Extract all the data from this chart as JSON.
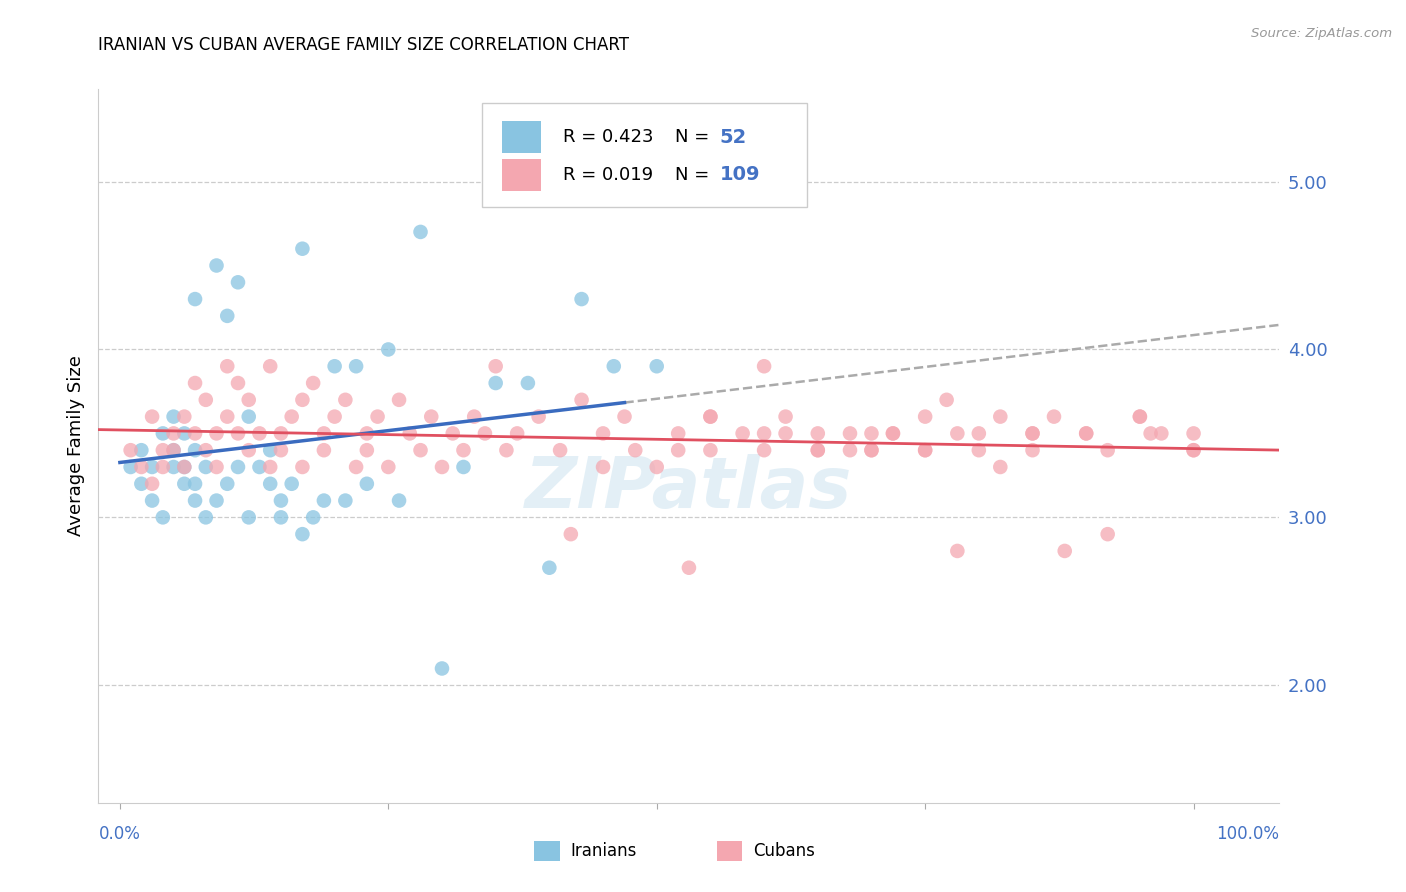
{
  "title": "IRANIAN VS CUBAN AVERAGE FAMILY SIZE CORRELATION CHART",
  "source": "Source: ZipAtlas.com",
  "ylabel": "Average Family Size",
  "R_iranian": 0.423,
  "N_iranian": 52,
  "R_cuban": 0.019,
  "N_cuban": 109,
  "color_iranian": "#89c4e1",
  "color_cuban": "#f4a7b0",
  "color_line_iranian": "#3a6bbf",
  "color_line_cuban": "#e05060",
  "color_dashed": "#aaaaaa",
  "watermark": "ZIPatlas",
  "legend_label1": "Iranians",
  "legend_label2": "Cubans",
  "ylim_min": 1.3,
  "ylim_max": 5.55,
  "xlim_min": -0.02,
  "xlim_max": 1.08,
  "yticks": [
    2.0,
    3.0,
    4.0,
    5.0
  ],
  "iranian_x": [
    0.01,
    0.02,
    0.02,
    0.03,
    0.03,
    0.04,
    0.04,
    0.05,
    0.05,
    0.05,
    0.06,
    0.06,
    0.06,
    0.07,
    0.07,
    0.07,
    0.07,
    0.08,
    0.08,
    0.09,
    0.09,
    0.1,
    0.1,
    0.11,
    0.11,
    0.12,
    0.12,
    0.13,
    0.14,
    0.14,
    0.15,
    0.15,
    0.16,
    0.17,
    0.17,
    0.18,
    0.19,
    0.2,
    0.21,
    0.22,
    0.23,
    0.25,
    0.26,
    0.28,
    0.3,
    0.32,
    0.35,
    0.38,
    0.4,
    0.43,
    0.46,
    0.5
  ],
  "iranian_y": [
    3.3,
    3.2,
    3.4,
    3.3,
    3.1,
    3.5,
    3.0,
    3.4,
    3.3,
    3.6,
    3.3,
    3.2,
    3.5,
    3.1,
    3.4,
    3.2,
    4.3,
    3.3,
    3.0,
    4.5,
    3.1,
    4.2,
    3.2,
    4.4,
    3.3,
    3.6,
    3.0,
    3.3,
    3.4,
    3.2,
    3.1,
    3.0,
    3.2,
    4.6,
    2.9,
    3.0,
    3.1,
    3.9,
    3.1,
    3.9,
    3.2,
    4.0,
    3.1,
    4.7,
    2.1,
    3.3,
    3.8,
    3.8,
    2.7,
    4.3,
    3.9,
    3.9
  ],
  "cuban_x": [
    0.01,
    0.02,
    0.03,
    0.03,
    0.04,
    0.04,
    0.05,
    0.05,
    0.06,
    0.06,
    0.07,
    0.07,
    0.08,
    0.08,
    0.09,
    0.09,
    0.1,
    0.1,
    0.11,
    0.11,
    0.12,
    0.12,
    0.13,
    0.14,
    0.14,
    0.15,
    0.15,
    0.16,
    0.17,
    0.17,
    0.18,
    0.19,
    0.19,
    0.2,
    0.21,
    0.22,
    0.23,
    0.23,
    0.24,
    0.25,
    0.26,
    0.27,
    0.28,
    0.29,
    0.3,
    0.31,
    0.32,
    0.33,
    0.34,
    0.36,
    0.37,
    0.39,
    0.41,
    0.43,
    0.45,
    0.47,
    0.5,
    0.52,
    0.55,
    0.55,
    0.58,
    0.6,
    0.62,
    0.65,
    0.65,
    0.68,
    0.7,
    0.72,
    0.75,
    0.75,
    0.78,
    0.8,
    0.82,
    0.85,
    0.87,
    0.9,
    0.92,
    0.95,
    0.97,
    1.0,
    0.53,
    0.6,
    0.68,
    0.72,
    0.77,
    0.82,
    0.88,
    0.92,
    0.96,
    1.0,
    0.42,
    0.35,
    0.45,
    0.52,
    0.6,
    0.65,
    0.7,
    0.75,
    0.8,
    0.85,
    0.9,
    0.95,
    1.0,
    0.48,
    0.55,
    0.62,
    0.7,
    0.78,
    0.85
  ],
  "cuban_y": [
    3.4,
    3.3,
    3.6,
    3.2,
    3.4,
    3.3,
    3.5,
    3.4,
    3.3,
    3.6,
    3.8,
    3.5,
    3.7,
    3.4,
    3.3,
    3.5,
    3.9,
    3.6,
    3.8,
    3.5,
    3.4,
    3.7,
    3.5,
    3.3,
    3.9,
    3.4,
    3.5,
    3.6,
    3.3,
    3.7,
    3.8,
    3.5,
    3.4,
    3.6,
    3.7,
    3.3,
    3.5,
    3.4,
    3.6,
    3.3,
    3.7,
    3.5,
    3.4,
    3.6,
    3.3,
    3.5,
    3.4,
    3.6,
    3.5,
    3.4,
    3.5,
    3.6,
    3.4,
    3.7,
    3.5,
    3.6,
    3.3,
    3.5,
    3.4,
    3.6,
    3.5,
    3.4,
    3.6,
    3.5,
    3.4,
    3.5,
    3.4,
    3.5,
    3.4,
    3.6,
    3.5,
    3.4,
    3.6,
    3.5,
    3.6,
    3.5,
    3.4,
    3.6,
    3.5,
    3.4,
    2.7,
    3.9,
    3.4,
    3.5,
    3.7,
    3.3,
    2.8,
    2.9,
    3.5,
    3.4,
    2.9,
    3.9,
    3.3,
    3.4,
    3.5,
    3.4,
    3.5,
    3.4,
    3.5,
    3.4,
    3.5,
    3.6,
    3.5,
    3.4,
    3.6,
    3.5,
    3.4,
    2.8,
    3.5
  ]
}
